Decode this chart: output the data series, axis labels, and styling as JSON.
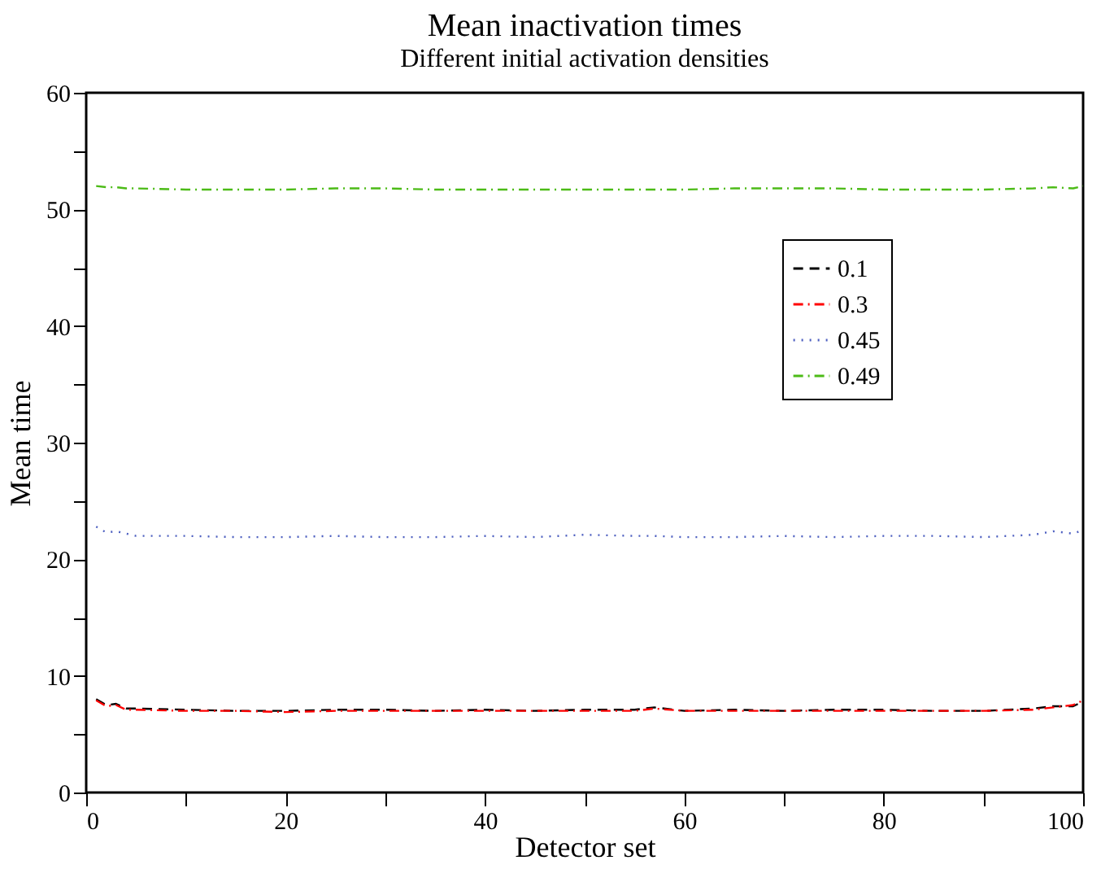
{
  "chart_data": {
    "type": "line",
    "title": "Mean inactivation times",
    "subtitle": "Different initial activation densities",
    "xlabel": "Detector set",
    "ylabel": "Mean time",
    "x": [
      1,
      2,
      3,
      4,
      5,
      10,
      15,
      20,
      25,
      30,
      35,
      40,
      45,
      50,
      55,
      57,
      60,
      65,
      70,
      75,
      80,
      85,
      90,
      95,
      97,
      99,
      100
    ],
    "series": [
      {
        "name": "0.1",
        "color": "#000000",
        "line_style": "dashed",
        "values": [
          8.0,
          7.5,
          7.6,
          7.2,
          7.2,
          7.1,
          7.0,
          7.0,
          7.1,
          7.1,
          7.0,
          7.1,
          7.0,
          7.1,
          7.1,
          7.3,
          7.0,
          7.1,
          7.0,
          7.1,
          7.1,
          7.0,
          7.0,
          7.2,
          7.4,
          7.4,
          7.8
        ]
      },
      {
        "name": "0.3",
        "color": "#ff0000",
        "line_style": "dashdot",
        "values": [
          7.9,
          7.4,
          7.5,
          7.1,
          7.1,
          7.0,
          7.0,
          6.9,
          7.0,
          7.0,
          7.0,
          7.0,
          7.0,
          7.0,
          7.0,
          7.2,
          7.0,
          7.0,
          7.0,
          7.0,
          7.0,
          7.0,
          7.0,
          7.1,
          7.3,
          7.5,
          7.9
        ]
      },
      {
        "name": "0.45",
        "color": "#4d5fc0",
        "line_style": "dotted",
        "values": [
          22.8,
          22.3,
          22.4,
          22.2,
          22.0,
          22.0,
          21.9,
          21.9,
          22.0,
          21.9,
          21.9,
          22.0,
          21.9,
          22.1,
          22.0,
          22.0,
          21.9,
          21.9,
          22.0,
          21.9,
          22.0,
          22.0,
          21.9,
          22.1,
          22.4,
          22.2,
          22.5
        ]
      },
      {
        "name": "0.49",
        "color": "#4cbb17",
        "line_style": "dashdot",
        "values": [
          52.0,
          51.9,
          51.9,
          51.8,
          51.8,
          51.7,
          51.7,
          51.7,
          51.8,
          51.8,
          51.7,
          51.7,
          51.7,
          51.7,
          51.7,
          51.7,
          51.7,
          51.8,
          51.8,
          51.8,
          51.7,
          51.7,
          51.7,
          51.8,
          51.9,
          51.8,
          52.0
        ]
      }
    ],
    "xlim": [
      0,
      100
    ],
    "xticks": [
      0,
      {
        "value": 10,
        "label": null
      },
      20,
      {
        "value": 30,
        "label": null
      },
      40,
      {
        "value": 50,
        "label": null
      },
      60,
      {
        "value": 70,
        "label": null
      },
      80,
      {
        "value": 90,
        "label": null
      },
      100
    ],
    "ylim": [
      0,
      60
    ],
    "yticks": [
      0,
      {
        "value": 5,
        "label": null
      },
      10,
      {
        "value": 15,
        "label": null
      },
      20,
      {
        "value": 25,
        "label": null
      },
      30,
      {
        "value": 35,
        "label": null
      },
      40,
      {
        "value": 45,
        "label": null
      },
      50,
      {
        "value": 55,
        "label": null
      },
      60
    ],
    "legend": "top right",
    "grid": false
  }
}
